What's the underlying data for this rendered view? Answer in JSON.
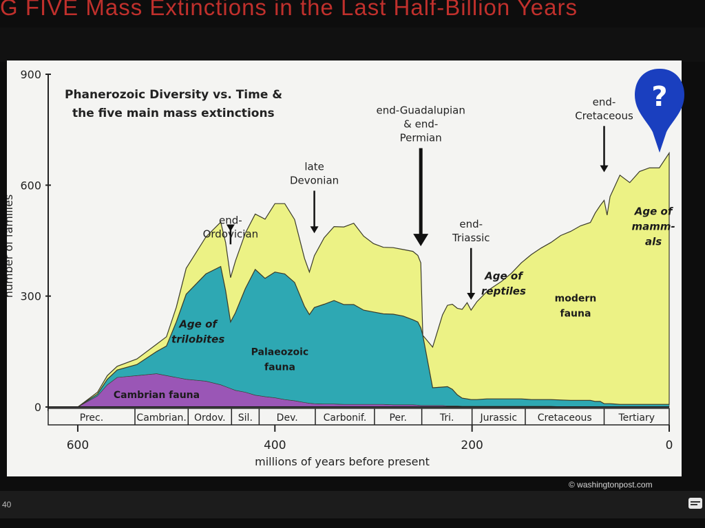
{
  "slide": {
    "title": "G FIVE Mass Extinctions in the Last Half-Billion Years",
    "slide_number": "40",
    "credit": "© washingtonpost.com",
    "marker_label": "?"
  },
  "colors": {
    "modern": "#ecf285",
    "palaeozoic": "#2ea8b3",
    "cambrian": "#9a56b6",
    "title": "#c0302c",
    "marker": "#1a3fbf"
  },
  "icons": [
    "question-marker-icon",
    "closed-caption-icon"
  ],
  "chart_data": {
    "type": "area",
    "title": [
      "Phanerozoic Diversity vs. Time &",
      "the five main mass extinctions"
    ],
    "xlabel": "millions of years before present",
    "ylabel": "number of families",
    "xlim": [
      630,
      0
    ],
    "ylim": [
      0,
      900
    ],
    "x_ticks": [
      600,
      400,
      200,
      0
    ],
    "y_ticks": [
      0,
      300,
      600,
      900
    ],
    "grid": false,
    "x": [
      630,
      600,
      580,
      570,
      560,
      540,
      520,
      510,
      500,
      490,
      470,
      455,
      450,
      445,
      440,
      430,
      420,
      410,
      400,
      390,
      380,
      370,
      365,
      360,
      350,
      340,
      330,
      320,
      310,
      300,
      290,
      280,
      270,
      260,
      255,
      252,
      250,
      240,
      230,
      225,
      220,
      215,
      210,
      205,
      201,
      195,
      185,
      180,
      170,
      160,
      150,
      140,
      130,
      120,
      110,
      100,
      90,
      80,
      75,
      70,
      66,
      63,
      60,
      50,
      40,
      30,
      20,
      10,
      0
    ],
    "series": [
      {
        "name": "Cambrian fauna",
        "values": [
          0,
          0,
          30,
          60,
          80,
          85,
          90,
          85,
          80,
          75,
          70,
          60,
          55,
          50,
          45,
          40,
          32,
          28,
          25,
          20,
          17,
          12,
          10,
          9,
          8,
          8,
          7,
          7,
          7,
          7,
          7,
          6,
          6,
          6,
          5,
          4,
          4,
          4,
          4,
          3,
          3,
          3,
          2,
          2,
          2,
          2,
          2,
          2,
          2,
          2,
          2,
          2,
          2,
          2,
          1,
          1,
          1,
          1,
          1,
          1,
          1,
          1,
          1,
          1,
          1,
          1,
          1,
          1,
          1
        ]
      },
      {
        "name": "Palaeozoic fauna",
        "values": [
          0,
          0,
          5,
          15,
          20,
          30,
          60,
          80,
          150,
          230,
          290,
          320,
          260,
          180,
          210,
          280,
          340,
          320,
          340,
          340,
          320,
          260,
          240,
          260,
          270,
          280,
          270,
          270,
          255,
          250,
          245,
          245,
          240,
          230,
          225,
          210,
          190,
          48,
          50,
          52,
          45,
          30,
          22,
          20,
          18,
          18,
          20,
          20,
          20,
          20,
          20,
          18,
          18,
          18,
          18,
          17,
          17,
          17,
          14,
          14,
          8,
          8,
          8,
          6,
          6,
          6,
          6,
          6,
          6
        ]
      },
      {
        "name": "modern fauna",
        "values": [
          0,
          0,
          5,
          10,
          10,
          15,
          20,
          25,
          40,
          70,
          100,
          120,
          130,
          120,
          140,
          150,
          150,
          160,
          185,
          190,
          170,
          130,
          115,
          140,
          180,
          200,
          210,
          220,
          200,
          185,
          180,
          180,
          180,
          185,
          180,
          176,
          0,
          110,
          195,
          220,
          230,
          234,
          240,
          260,
          242,
          265,
          290,
          300,
          318,
          340,
          368,
          392,
          410,
          425,
          445,
          457,
          472,
          481,
          510,
          530,
          550,
          510,
          560,
          620,
          600,
          630,
          640,
          640,
          680
        ]
      }
    ],
    "series_labels": [
      "Cambrian fauna",
      "Palaeozoic fauna",
      "modern fauna"
    ],
    "eras": [
      "Prec.",
      "Cambrian.",
      "Ordov.",
      "Sil.",
      "Dev.",
      "Carbonif.",
      "Per.",
      "Tri.",
      "Jurassic",
      "Cretaceous",
      "Tertiary"
    ],
    "era_bounds": [
      630,
      542,
      488,
      444,
      416,
      359,
      299,
      251,
      200,
      146,
      66,
      0
    ],
    "region_labels": [
      {
        "text": [
          "Age of",
          "trilobites"
        ]
      },
      {
        "text": [
          "Age of",
          "reptiles"
        ]
      },
      {
        "text": [
          "Age of",
          "mamm-",
          "als"
        ]
      }
    ],
    "annotations": [
      {
        "text": [
          "end-",
          "Ordovician"
        ],
        "x": 445,
        "value_top": 440,
        "value_bottom": 475
      },
      {
        "text": [
          "late",
          "Devonian"
        ],
        "x": 360,
        "value_top": 585,
        "value_bottom": 470
      },
      {
        "text": [
          "end-Guadalupian",
          "& end-",
          "Permian"
        ],
        "x": 252,
        "value_top": 700,
        "value_bottom": 435
      },
      {
        "text": [
          "end-",
          "Triassic"
        ],
        "x": 201,
        "value_top": 430,
        "value_bottom": 290
      },
      {
        "text": [
          "end-",
          "Cretaceous"
        ],
        "x": 66,
        "value_top": 760,
        "value_bottom": 635
      }
    ]
  }
}
